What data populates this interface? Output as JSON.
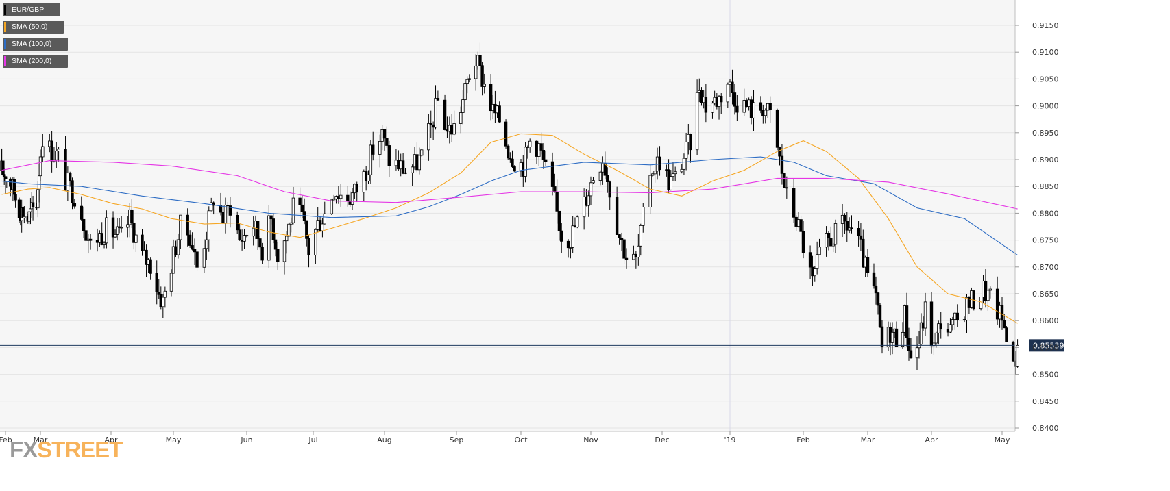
{
  "legend": {
    "symbol": "EUR/GBP",
    "sma50": "SMA (50,0)",
    "sma100": "SMA (100,0)",
    "sma200": "SMA (200,0)"
  },
  "brand": {
    "fx": "FX",
    "street": "STREET"
  },
  "colors": {
    "candle": "#000000",
    "sma50": "#f5a623",
    "sma100": "#2e6dc4",
    "sma200": "#e535e5",
    "price_line": "#1f3a5f",
    "grid": "#e4e4e4",
    "plot_bg": "#f6f6f6"
  },
  "chart_data": {
    "type": "candlestick",
    "title": "EUR/GBP",
    "ylim": [
      0.8395,
      0.9195
    ],
    "y_ticks": [
      "0.8400",
      "0.8450",
      "0.8500",
      "0.8550",
      "0.8600",
      "0.8650",
      "0.8700",
      "0.8750",
      "0.8800",
      "0.8850",
      "0.8900",
      "0.8950",
      "0.9000",
      "0.9050",
      "0.9100",
      "0.9150"
    ],
    "x_ticks": [
      "Feb",
      "Mar",
      "Apr",
      "May",
      "Jun",
      "Jul",
      "Aug",
      "Sep",
      "Oct",
      "Nov",
      "Dec",
      "'19",
      "Feb",
      "Mar",
      "Apr",
      "May"
    ],
    "current_price": "0.85539",
    "grid": true,
    "candle_anchors": [
      [
        "2018-01-29",
        0.888
      ],
      [
        "2018-02-05",
        0.886
      ],
      [
        "2018-02-12",
        0.881
      ],
      [
        "2018-02-19",
        0.879
      ],
      [
        "2018-02-26",
        0.882
      ],
      [
        "2018-03-02",
        0.8945
      ],
      [
        "2018-03-05",
        0.892
      ],
      [
        "2018-03-09",
        0.8905
      ],
      [
        "2018-03-12",
        0.886
      ],
      [
        "2018-03-16",
        0.8835
      ],
      [
        "2018-03-19",
        0.88
      ],
      [
        "2018-03-23",
        0.874
      ],
      [
        "2018-03-26",
        0.8755
      ],
      [
        "2018-03-30",
        0.877
      ],
      [
        "2018-04-06",
        0.8755
      ],
      [
        "2018-04-10",
        0.879
      ],
      [
        "2018-04-16",
        0.872
      ],
      [
        "2018-04-20",
        0.8705
      ],
      [
        "2018-04-24",
        0.865
      ],
      [
        "2018-04-26",
        0.8635
      ],
      [
        "2018-04-30",
        0.8705
      ],
      [
        "2018-05-04",
        0.8775
      ],
      [
        "2018-05-08",
        0.876
      ],
      [
        "2018-05-11",
        0.87
      ],
      [
        "2018-05-15",
        0.8765
      ],
      [
        "2018-05-18",
        0.883
      ],
      [
        "2018-05-22",
        0.879
      ],
      [
        "2018-05-25",
        0.8815
      ],
      [
        "2018-05-29",
        0.875
      ],
      [
        "2018-06-04",
        0.878
      ],
      [
        "2018-06-08",
        0.8735
      ],
      [
        "2018-06-12",
        0.879
      ],
      [
        "2018-06-15",
        0.8725
      ],
      [
        "2018-06-19",
        0.876
      ],
      [
        "2018-06-22",
        0.881
      ],
      [
        "2018-06-26",
        0.879
      ],
      [
        "2018-06-29",
        0.873
      ],
      [
        "2018-07-03",
        0.878
      ],
      [
        "2018-07-06",
        0.88
      ],
      [
        "2018-07-10",
        0.8845
      ],
      [
        "2018-07-13",
        0.8835
      ],
      [
        "2018-07-17",
        0.883
      ],
      [
        "2018-07-20",
        0.8845
      ],
      [
        "2018-07-24",
        0.888
      ],
      [
        "2018-07-27",
        0.892
      ],
      [
        "2018-07-31",
        0.8945
      ],
      [
        "2018-08-03",
        0.89
      ],
      [
        "2018-08-07",
        0.889
      ],
      [
        "2018-08-10",
        0.888
      ],
      [
        "2018-08-14",
        0.889
      ],
      [
        "2018-08-17",
        0.8905
      ],
      [
        "2018-08-21",
        0.896
      ],
      [
        "2018-08-24",
        0.901
      ],
      [
        "2018-08-28",
        0.8955
      ],
      [
        "2018-08-31",
        0.896
      ],
      [
        "2018-09-04",
        0.901
      ],
      [
        "2018-09-07",
        0.906
      ],
      [
        "2018-09-10",
        0.9085
      ],
      [
        "2018-09-14",
        0.904
      ],
      [
        "2018-09-18",
        0.899
      ],
      [
        "2018-09-21",
        0.8975
      ],
      [
        "2018-09-25",
        0.892
      ],
      [
        "2018-09-28",
        0.89
      ],
      [
        "2018-10-02",
        0.889
      ],
      [
        "2018-10-05",
        0.8935
      ],
      [
        "2018-10-09",
        0.8925
      ],
      [
        "2018-10-12",
        0.888
      ],
      [
        "2018-10-16",
        0.882
      ],
      [
        "2018-10-19",
        0.876
      ],
      [
        "2018-10-23",
        0.8755
      ],
      [
        "2018-10-26",
        0.8785
      ],
      [
        "2018-10-30",
        0.883
      ],
      [
        "2018-11-02",
        0.887
      ],
      [
        "2018-11-06",
        0.8905
      ],
      [
        "2018-11-09",
        0.8845
      ],
      [
        "2018-11-13",
        0.876
      ],
      [
        "2018-11-16",
        0.872
      ],
      [
        "2018-11-20",
        0.871
      ],
      [
        "2018-11-22",
        0.876
      ],
      [
        "2018-11-26",
        0.888
      ],
      [
        "2018-11-30",
        0.89
      ],
      [
        "2018-12-04",
        0.886
      ],
      [
        "2018-12-07",
        0.8865
      ],
      [
        "2018-12-11",
        0.8905
      ],
      [
        "2018-12-14",
        0.8935
      ],
      [
        "2018-12-18",
        0.904
      ],
      [
        "2018-12-21",
        0.9
      ],
      [
        "2018-12-27",
        0.9015
      ],
      [
        "2018-12-31",
        0.9045
      ],
      [
        "2019-01-04",
        0.901
      ],
      [
        "2019-01-08",
        0.9
      ],
      [
        "2019-01-11",
        0.899
      ],
      [
        "2019-01-15",
        0.9
      ],
      [
        "2019-01-18",
        0.898
      ],
      [
        "2019-01-22",
        0.89
      ],
      [
        "2019-01-25",
        0.883
      ],
      [
        "2019-01-29",
        0.879
      ],
      [
        "2019-02-01",
        0.874
      ],
      [
        "2019-02-05",
        0.867
      ],
      [
        "2019-02-08",
        0.872
      ],
      [
        "2019-02-12",
        0.875
      ],
      [
        "2019-02-15",
        0.876
      ],
      [
        "2019-02-19",
        0.878
      ],
      [
        "2019-02-22",
        0.877
      ],
      [
        "2019-02-26",
        0.873
      ],
      [
        "2019-03-01",
        0.868
      ],
      [
        "2019-03-05",
        0.864
      ],
      [
        "2019-03-08",
        0.855
      ],
      [
        "2019-03-12",
        0.858
      ],
      [
        "2019-03-15",
        0.857
      ],
      [
        "2019-03-19",
        0.861
      ],
      [
        "2019-03-22",
        0.853
      ],
      [
        "2019-03-26",
        0.856
      ],
      [
        "2019-03-29",
        0.862
      ],
      [
        "2019-04-02",
        0.855
      ],
      [
        "2019-04-05",
        0.86
      ],
      [
        "2019-04-09",
        0.858
      ],
      [
        "2019-04-12",
        0.86
      ],
      [
        "2019-04-16",
        0.863
      ],
      [
        "2019-04-19",
        0.864
      ],
      [
        "2019-04-23",
        0.866
      ],
      [
        "2019-04-26",
        0.864
      ],
      [
        "2019-04-30",
        0.861
      ],
      [
        "2019-05-03",
        0.858
      ],
      [
        "2019-05-06",
        0.851
      ],
      [
        "2019-05-08",
        0.855
      ]
    ],
    "series": [
      {
        "name": "SMA (50,0)",
        "points": [
          [
            "2018-01-29",
            0.8835
          ],
          [
            "2018-02-19",
            0.8845
          ],
          [
            "2018-03-05",
            0.8848
          ],
          [
            "2018-03-19",
            0.8835
          ],
          [
            "2018-04-02",
            0.8818
          ],
          [
            "2018-04-16",
            0.8808
          ],
          [
            "2018-04-30",
            0.879
          ],
          [
            "2018-05-14",
            0.878
          ],
          [
            "2018-05-28",
            0.8782
          ],
          [
            "2018-06-11",
            0.8765
          ],
          [
            "2018-06-25",
            0.8755
          ],
          [
            "2018-07-09",
            0.8772
          ],
          [
            "2018-07-23",
            0.879
          ],
          [
            "2018-08-06",
            0.881
          ],
          [
            "2018-08-20",
            0.8838
          ],
          [
            "2018-09-03",
            0.8875
          ],
          [
            "2018-09-17",
            0.8932
          ],
          [
            "2018-10-01",
            0.8948
          ],
          [
            "2018-10-15",
            0.8945
          ],
          [
            "2018-10-29",
            0.891
          ],
          [
            "2018-11-12",
            0.888
          ],
          [
            "2018-11-26",
            0.8845
          ],
          [
            "2018-12-10",
            0.8832
          ],
          [
            "2018-12-24",
            0.886
          ],
          [
            "2019-01-07",
            0.888
          ],
          [
            "2019-01-21",
            0.8915
          ],
          [
            "2019-02-01",
            0.8935
          ],
          [
            "2019-02-11",
            0.8915
          ],
          [
            "2019-02-25",
            0.8865
          ],
          [
            "2019-03-11",
            0.879
          ],
          [
            "2019-03-25",
            0.87
          ],
          [
            "2019-04-08",
            0.865
          ],
          [
            "2019-04-22",
            0.8635
          ],
          [
            "2019-05-08",
            0.8595
          ]
        ]
      },
      {
        "name": "SMA (100,0)",
        "points": [
          [
            "2018-01-29",
            0.886
          ],
          [
            "2018-02-19",
            0.8855
          ],
          [
            "2018-03-19",
            0.885
          ],
          [
            "2018-04-16",
            0.8832
          ],
          [
            "2018-05-14",
            0.8818
          ],
          [
            "2018-06-11",
            0.88
          ],
          [
            "2018-07-09",
            0.8792
          ],
          [
            "2018-08-06",
            0.8795
          ],
          [
            "2018-08-20",
            0.8812
          ],
          [
            "2018-09-03",
            0.8835
          ],
          [
            "2018-09-17",
            0.886
          ],
          [
            "2018-10-01",
            0.888
          ],
          [
            "2018-10-29",
            0.8895
          ],
          [
            "2018-11-26",
            0.889
          ],
          [
            "2018-12-24",
            0.89
          ],
          [
            "2019-01-14",
            0.8905
          ],
          [
            "2019-01-28",
            0.8895
          ],
          [
            "2019-02-11",
            0.887
          ],
          [
            "2019-03-04",
            0.8855
          ],
          [
            "2019-03-25",
            0.881
          ],
          [
            "2019-04-15",
            0.879
          ],
          [
            "2019-05-08",
            0.8722
          ]
        ]
      },
      {
        "name": "SMA (200,0)",
        "points": [
          [
            "2018-01-29",
            0.888
          ],
          [
            "2018-03-05",
            0.8898
          ],
          [
            "2018-04-02",
            0.8895
          ],
          [
            "2018-04-30",
            0.8888
          ],
          [
            "2018-05-28",
            0.887
          ],
          [
            "2018-06-18",
            0.884
          ],
          [
            "2018-07-09",
            0.8823
          ],
          [
            "2018-08-06",
            0.882
          ],
          [
            "2018-09-03",
            0.883
          ],
          [
            "2018-10-01",
            0.884
          ],
          [
            "2018-10-29",
            0.884
          ],
          [
            "2018-11-26",
            0.8838
          ],
          [
            "2018-12-24",
            0.8845
          ],
          [
            "2019-01-21",
            0.8865
          ],
          [
            "2019-02-11",
            0.8865
          ],
          [
            "2019-03-11",
            0.8858
          ],
          [
            "2019-04-08",
            0.8836
          ],
          [
            "2019-05-08",
            0.8808
          ]
        ]
      }
    ]
  }
}
